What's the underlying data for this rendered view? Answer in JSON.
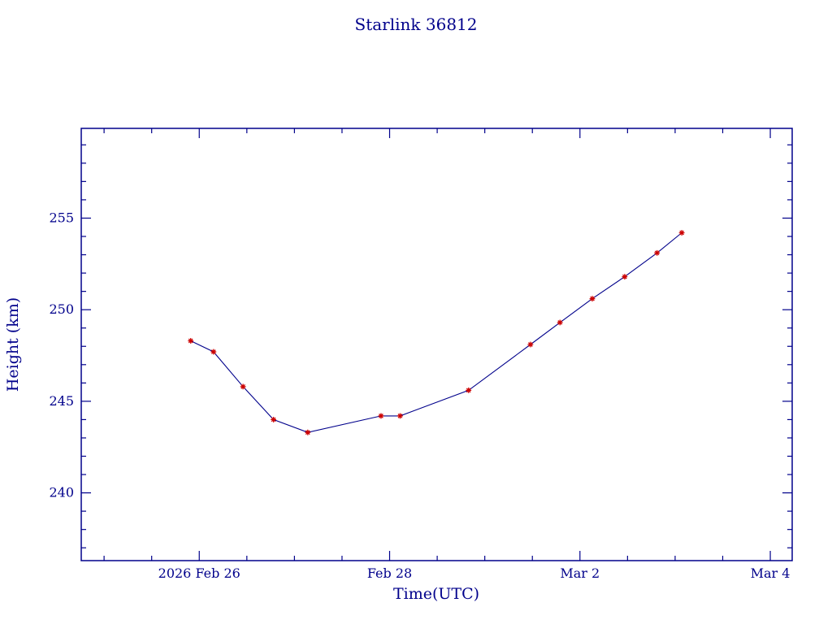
{
  "window": {
    "background": "#ffffff"
  },
  "colors": {
    "axis": "#00008b",
    "text": "#00008b",
    "line": "#00008b",
    "marker": "#cc0000"
  },
  "chart_data": {
    "type": "line",
    "title": "Starlink 36812",
    "xlabel": "Time(UTC)",
    "ylabel": "Height (km)",
    "x_unit": "days since 2026 Feb 26 00:00 UTC",
    "x": [
      -0.09,
      0.15,
      0.46,
      0.78,
      1.14,
      1.91,
      2.11,
      2.83,
      3.48,
      3.79,
      4.13,
      4.47,
      4.81,
      5.07
    ],
    "y": [
      248.3,
      247.7,
      245.8,
      244.0,
      243.3,
      244.2,
      244.2,
      245.6,
      248.1,
      249.3,
      250.6,
      251.8,
      253.1,
      254.2
    ],
    "xlim": [
      -1.24,
      6.23
    ],
    "ylim": [
      236.3,
      259.9
    ],
    "x_major_ticks": [
      {
        "value": 0,
        "label": "2026 Feb 26"
      },
      {
        "value": 2,
        "label": "Feb 28"
      },
      {
        "value": 4,
        "label": "Mar 2"
      },
      {
        "value": 6,
        "label": "Mar 4"
      }
    ],
    "y_major_ticks": [
      {
        "value": 240,
        "label": "240"
      },
      {
        "value": 245,
        "label": "245"
      },
      {
        "value": 250,
        "label": "250"
      },
      {
        "value": 255,
        "label": "255"
      }
    ],
    "x_minor_step": 0.5,
    "y_minor_step": 1,
    "grid": false,
    "legend": false,
    "marker": "red-asterisk",
    "series_name": "satellite-height"
  }
}
